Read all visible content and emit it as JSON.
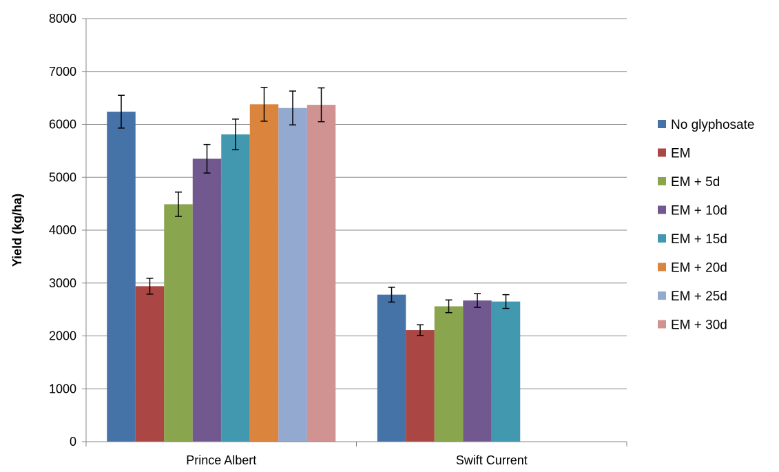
{
  "chart_data": {
    "type": "bar",
    "title": "",
    "xlabel": "",
    "ylabel": "Yield (kg/ha)",
    "ylim": [
      0,
      8000
    ],
    "yticks": [
      "0",
      "1000",
      "2000",
      "3000",
      "4000",
      "5000",
      "6000",
      "7000",
      "8000"
    ],
    "categories": [
      "Prince Albert",
      "Swift Current"
    ],
    "grid": true,
    "legend_position": "right",
    "series": [
      {
        "name": "No glyphosate",
        "color": "#4572A7",
        "values": [
          6240,
          2780
        ],
        "errors": [
          310,
          140
        ]
      },
      {
        "name": "EM",
        "color": "#AA4643",
        "values": [
          2940,
          2110
        ],
        "errors": [
          150,
          100
        ]
      },
      {
        "name": "EM + 5d",
        "color": "#89A54E",
        "values": [
          4490,
          2560
        ],
        "errors": [
          230,
          120
        ]
      },
      {
        "name": "EM + 10d",
        "color": "#71588F",
        "values": [
          5350,
          2670
        ],
        "errors": [
          270,
          130
        ]
      },
      {
        "name": "EM + 15d",
        "color": "#4198AF",
        "values": [
          5810,
          2650
        ],
        "errors": [
          290,
          130
        ]
      },
      {
        "name": "EM + 20d",
        "color": "#DB843D",
        "values": [
          6380,
          null
        ],
        "errors": [
          320,
          null
        ]
      },
      {
        "name": "EM + 25d",
        "color": "#93A9CF",
        "values": [
          6310,
          null
        ],
        "errors": [
          320,
          null
        ]
      },
      {
        "name": "EM + 30d",
        "color": "#D19392",
        "values": [
          6370,
          null
        ],
        "errors": [
          320,
          null
        ]
      }
    ]
  }
}
